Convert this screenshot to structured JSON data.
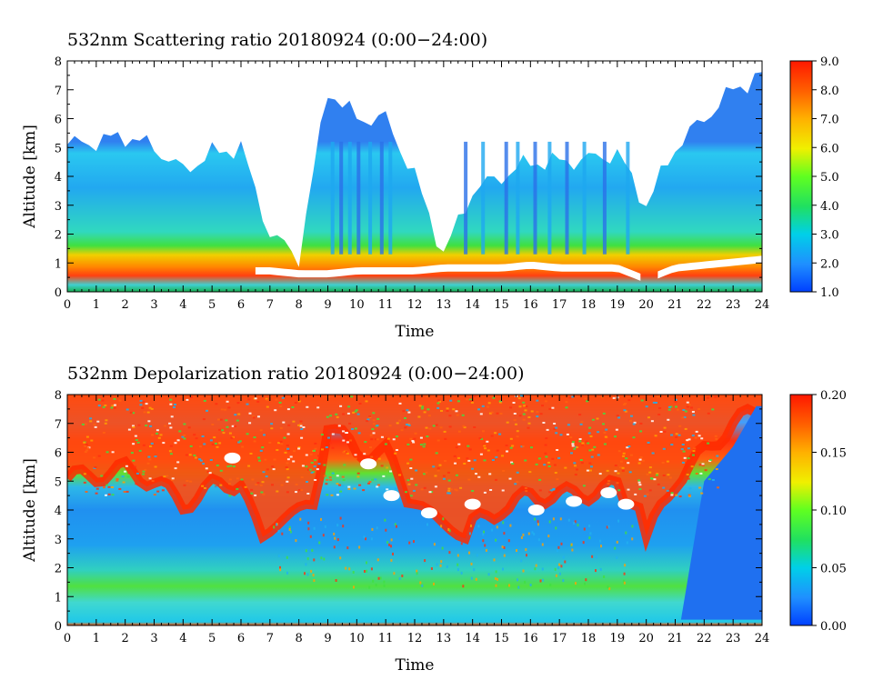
{
  "chart_data": [
    {
      "type": "heatmap",
      "title": "532nm Scattering ratio  20180924 (0:00−24:00)",
      "xlabel": "Time",
      "ylabel": "Altitude [km]",
      "xlim": [
        0,
        24
      ],
      "ylim": [
        0,
        8
      ],
      "x_ticks": [
        "0",
        "1",
        "2",
        "3",
        "4",
        "5",
        "6",
        "7",
        "8",
        "9",
        "10",
        "11",
        "12",
        "13",
        "14",
        "15",
        "16",
        "17",
        "18",
        "19",
        "20",
        "21",
        "22",
        "23",
        "24"
      ],
      "y_ticks": [
        "0",
        "1",
        "2",
        "3",
        "4",
        "5",
        "6",
        "7",
        "8"
      ],
      "colorbar": {
        "range": [
          1.0,
          9.0
        ],
        "labels": [
          "1.0",
          "2.0",
          "3.0",
          "4.0",
          "5.0",
          "6.0",
          "7.0",
          "8.0",
          "9.0"
        ],
        "colormap": "rainbow (blue-cyan-green-yellow-orange-red)"
      },
      "features": {
        "aerosol_layer_top_km": [
          5.1,
          5.2,
          5.4,
          5.0,
          4.2,
          4.8,
          5.0,
          2.0,
          1.2,
          7.0,
          6.0,
          6.0,
          4.0,
          1.3,
          3.5,
          4.0,
          4.5,
          4.5,
          4.6,
          4.8,
          3.0,
          5.0,
          6.0,
          7.0,
          7.5
        ],
        "cloud_base_km": [
          0.6,
          0.6,
          0.6,
          0.6,
          0.6,
          0.5,
          0.6,
          0.6,
          0.5,
          0.5,
          0.6,
          0.6,
          0.6,
          0.7,
          0.7,
          0.7,
          0.8,
          0.7,
          0.7,
          0.7,
          0.3,
          0.7,
          0.8,
          0.9,
          1.0
        ]
      }
    },
    {
      "type": "heatmap",
      "title": "532nm Depolarization ratio  20180924 (0:00−24:00)",
      "xlabel": "Time",
      "ylabel": "Altitude [km]",
      "xlim": [
        0,
        24
      ],
      "ylim": [
        0,
        8
      ],
      "x_ticks": [
        "0",
        "1",
        "2",
        "3",
        "4",
        "5",
        "6",
        "7",
        "8",
        "9",
        "10",
        "11",
        "12",
        "13",
        "14",
        "15",
        "16",
        "17",
        "18",
        "19",
        "20",
        "21",
        "22",
        "23",
        "24"
      ],
      "y_ticks": [
        "0",
        "1",
        "2",
        "3",
        "4",
        "5",
        "6",
        "7",
        "8"
      ],
      "colorbar": {
        "range": [
          0.0,
          0.2
        ],
        "labels": [
          "0.00",
          "0.05",
          "0.10",
          "0.15",
          "0.20"
        ],
        "colormap": "rainbow (blue-cyan-green-yellow-orange-red)"
      }
    }
  ]
}
